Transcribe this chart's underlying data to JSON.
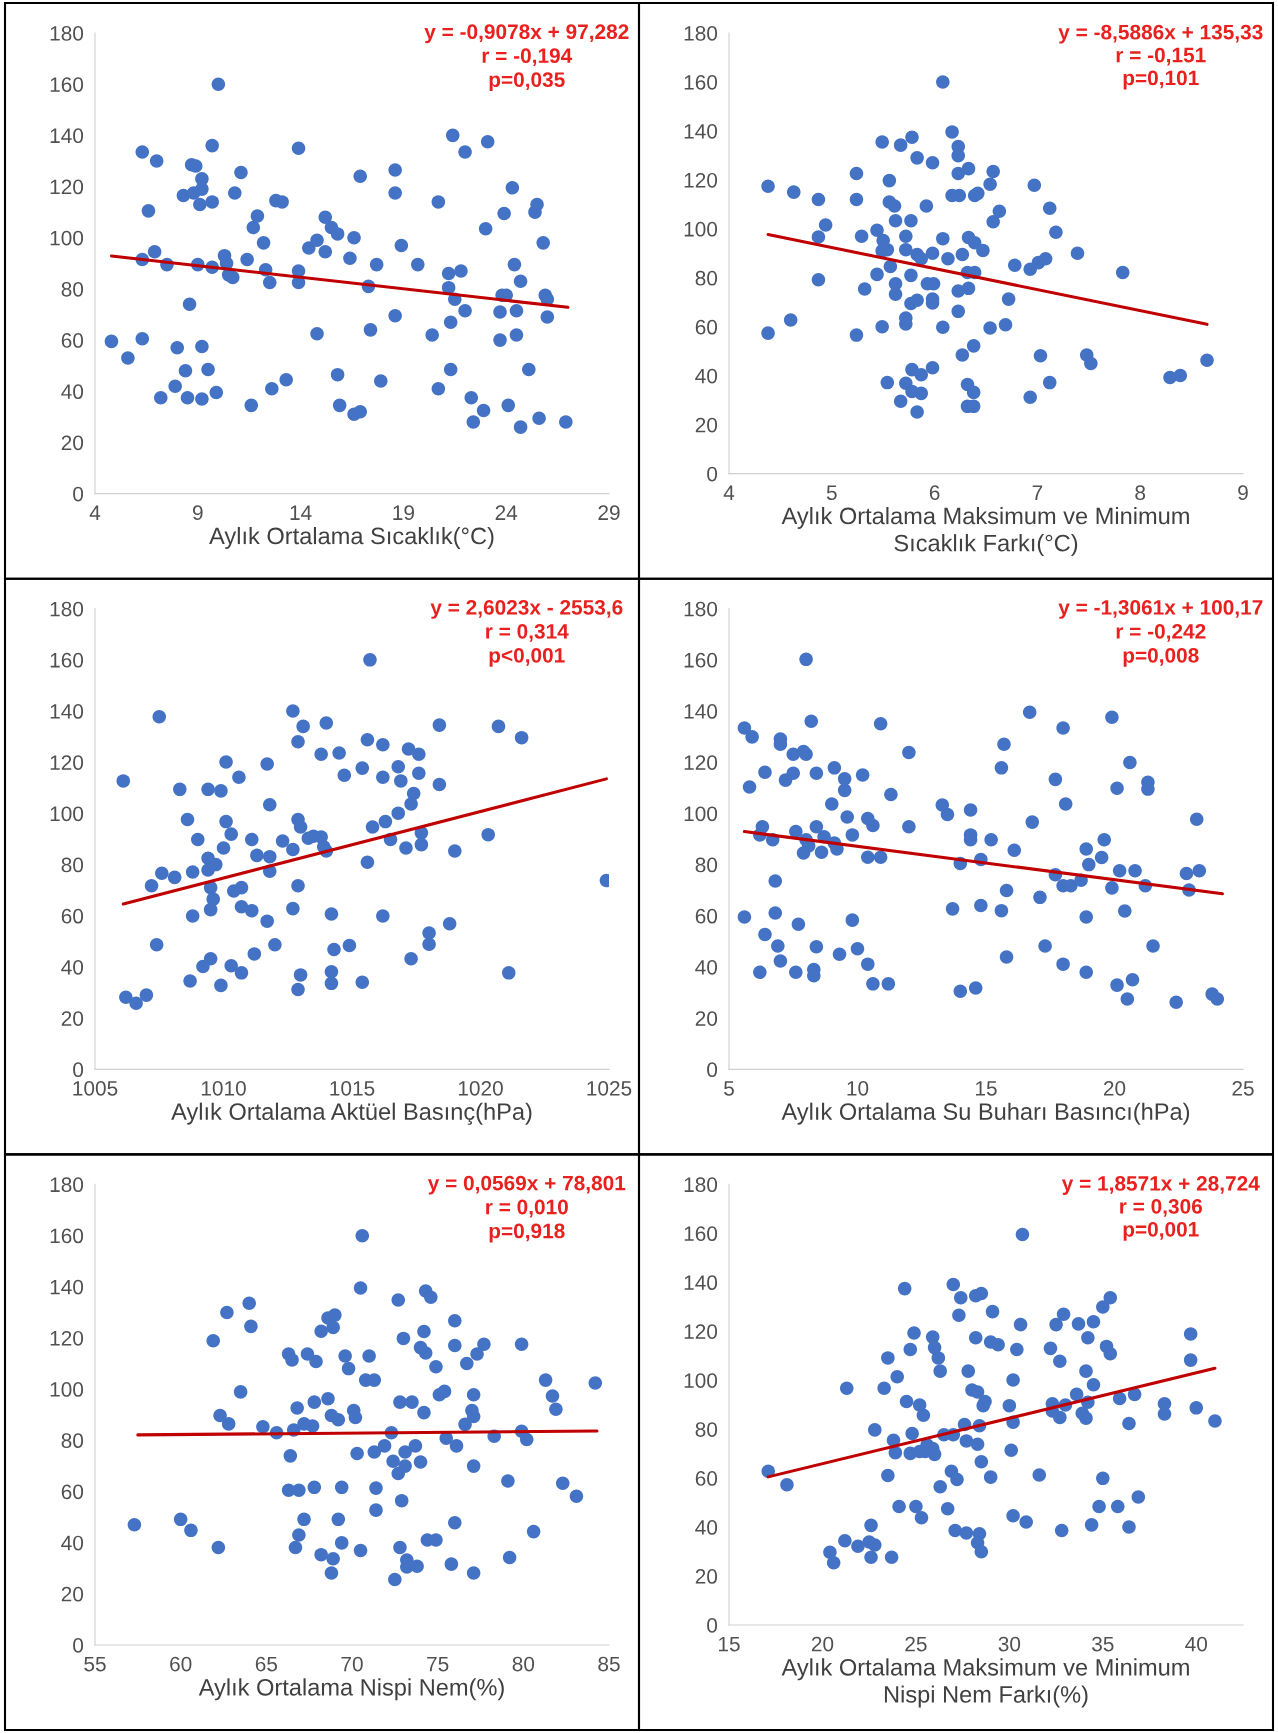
{
  "chart_data": [
    {
      "type": "scatter",
      "xlabel": "Aylık Ortalama Sıcaklık(°C)",
      "xlim": [
        4,
        29
      ],
      "xticks": [
        4,
        9,
        14,
        19,
        24,
        29
      ],
      "ylim": [
        0,
        180
      ],
      "yticks": [
        0,
        20,
        40,
        60,
        80,
        100,
        120,
        140,
        160,
        180
      ],
      "grid": false,
      "marker": "circle",
      "annotations": [
        "y = -0,9078x + 97,282",
        "r = -0,194",
        "p=0,035"
      ],
      "series": [
        {
          "color": "#4472c4",
          "x": [
            4.8,
            5.6,
            6.3,
            6.3,
            6.3,
            6.6,
            6.9,
            7.0,
            7.2,
            7.5,
            7.9,
            8.0,
            8.3,
            8.4,
            8.5,
            8.6,
            8.7,
            8.9,
            8.8,
            9.0,
            9.1,
            9.2,
            9.2,
            9.2,
            9.2,
            9.5,
            9.7,
            9.7,
            9.7,
            9.9,
            10.0,
            10.3,
            10.4,
            10.5,
            10.7,
            10.8,
            11.1,
            11.4,
            11.6,
            11.7,
            11.9,
            12.2,
            12.3,
            12.5,
            12.6,
            12.8,
            13.1,
            13.3,
            13.9,
            13.9,
            13.9,
            14.4,
            14.8,
            14.8,
            15.2,
            15.2,
            15.5,
            15.8,
            15.8,
            15.9,
            16.6,
            16.4,
            16.6,
            16.9,
            16.9,
            17.3,
            17.4,
            17.7,
            17.9,
            18.6,
            18.6,
            18.6,
            18.9,
            19.7,
            20.4,
            20.7,
            20.7,
            21.2,
            21.2,
            21.4,
            21.3,
            21.3,
            21.5,
            21.8,
            22.0,
            22.0,
            22.3,
            22.4,
            22.9,
            23.0,
            23.1,
            23.7,
            23.7,
            23.8,
            24.0,
            23.9,
            24.1,
            24.3,
            24.4,
            24.5,
            24.5,
            24.7,
            24.7,
            25.1,
            25.4,
            25.5,
            25.6,
            25.8,
            25.9,
            26.0,
            26.0,
            26.9
          ],
          "values": [
            59.5,
            53,
            133.5,
            60.5,
            91.5,
            110.5,
            94.5,
            130,
            37.5,
            89.5,
            42,
            57,
            116.5,
            48,
            37.5,
            74,
            128.5,
            128,
            117.5,
            89.5,
            113,
            123,
            119,
            57.5,
            37,
            48.5,
            136,
            114,
            88.5,
            39.5,
            160,
            93,
            90,
            85.5,
            84.5,
            117.5,
            125.5,
            91.5,
            34.5,
            104,
            108.5,
            98,
            87.5,
            82.5,
            41,
            114.5,
            114,
            44.5,
            135,
            87,
            82.5,
            96,
            99,
            62.5,
            94.5,
            108,
            104,
            101.5,
            46.5,
            34.5,
            100,
            92,
            31,
            32,
            124,
            81,
            64,
            89.5,
            44,
            126.5,
            117.5,
            69.5,
            97,
            89.5,
            62,
            114,
            41,
            86,
            80.5,
            140,
            67,
            48.5,
            76,
            87,
            71.5,
            133.5,
            37.5,
            28,
            32.5,
            103.5,
            137.5,
            60,
            71,
            77.5,
            77.5,
            109.5,
            34.5,
            119.5,
            89.5,
            71.5,
            62,
            83,
            26,
            48.5,
            110,
            113,
            29.5,
            98,
            77.5,
            76,
            69,
            28
          ]
        },
        {
          "type": "line",
          "color": "#c00000",
          "marker": "none",
          "x": [
            4.8,
            27.0
          ],
          "values": [
            92.9,
            72.8
          ]
        }
      ]
    },
    {
      "type": "scatter",
      "xlabel": "Aylık Ortalama Maksimum ve Minimum\nSıcaklık Farkı(°C)",
      "xlim": [
        4,
        9
      ],
      "xticks": [
        4,
        5,
        6,
        7,
        8,
        9
      ],
      "ylim": [
        0,
        180
      ],
      "yticks": [
        0,
        20,
        40,
        60,
        80,
        100,
        120,
        140,
        160,
        180
      ],
      "grid": false,
      "marker": "circle",
      "annotations": [
        "y = -8,5886x + 135,33",
        "r = -0,151",
        "p=0,101"
      ],
      "series": [
        {
          "color": "#4472c4",
          "x": [
            4.38,
            4.38,
            4.63,
            4.6,
            4.87,
            4.87,
            4.94,
            4.87,
            5.24,
            5.24,
            5.29,
            5.32,
            5.24,
            5.44,
            5.44,
            5.49,
            5.5,
            5.49,
            5.54,
            5.49,
            5.54,
            5.56,
            5.56,
            5.61,
            5.57,
            5.62,
            5.62,
            5.62,
            5.67,
            5.72,
            5.72,
            5.72,
            5.72,
            5.72,
            5.67,
            5.78,
            5.77,
            5.77,
            5.77,
            5.83,
            5.83,
            5.83,
            5.87,
            5.78,
            5.87,
            5.87,
            5.78,
            5.83,
            5.92,
            5.93,
            5.99,
            5.98,
            5.98,
            5.98,
            5.98,
            5.98,
            6.08,
            6.08,
            6.13,
            6.08,
            6.17,
            6.23,
            6.23,
            6.23,
            6.17,
            6.24,
            6.23,
            6.23,
            6.27,
            6.27,
            6.33,
            6.33,
            6.32,
            6.39,
            6.33,
            6.32,
            6.38,
            6.32,
            6.38,
            6.38,
            6.39,
            6.42,
            6.39,
            6.47,
            6.54,
            6.57,
            6.57,
            6.63,
            6.54,
            6.69,
            6.72,
            6.78,
            6.93,
            6.97,
            7.01,
            7.08,
            6.93,
            7.03,
            7.12,
            7.18,
            7.12,
            7.39,
            7.48,
            7.52,
            7.83,
            8.29,
            8.39,
            8.65
          ],
          "values": [
            117.4,
            57.4,
            115,
            62.8,
            112,
            96.7,
            101.6,
            79.2,
            122.6,
            112,
            97,
            75.4,
            56.6,
            99.4,
            81.4,
            135.5,
            95.2,
            91,
            91.5,
            60,
            37.2,
            119.7,
            111,
            109.3,
            84.6,
            103.3,
            77.6,
            73.3,
            134.2,
            97,
            91.5,
            63.6,
            61.1,
            36.9,
            29.6,
            137.4,
            103.3,
            81,
            69.5,
            129,
            89.5,
            70.8,
            87.8,
            42.5,
            40.4,
            32.8,
            33.6,
            25.2,
            109.3,
            77.6,
            77.6,
            71.3,
            69.7,
            127,
            90,
            43.3,
            160,
            96,
            87.8,
            59.8,
            139.6,
            133.6,
            129.9,
            122.6,
            113.6,
            113.6,
            74.6,
            66.3,
            89.5,
            48.5,
            124.6,
            96.5,
            82.2,
            82.2,
            75.7,
            36.4,
            33.2,
            27.5,
            27.5,
            52.2,
            113.6,
            114.5,
            94.3,
            91.2,
            118.2,
            123.4,
            102.9,
            107.2,
            59.5,
            60.8,
            71.3,
            85.1,
            83.5,
            117.8,
            86.2,
            87.8,
            31.2,
            48.2,
            108.4,
            98.6,
            37.2,
            90,
            48.5,
            45,
            82.2,
            39.3,
            40.1,
            46.3
          ]
        },
        {
          "type": "line",
          "color": "#c00000",
          "marker": "none",
          "x": [
            4.38,
            8.65
          ],
          "values": [
            97.7,
            61.0
          ]
        }
      ]
    },
    {
      "type": "scatter",
      "xlabel": "Aylık Ortalama Aktüel Basınç(hPa)",
      "xlim": [
        1005,
        1025
      ],
      "xticks": [
        1005,
        1010,
        1015,
        1020,
        1025
      ],
      "ylim": [
        0,
        180
      ],
      "yticks": [
        0,
        20,
        40,
        60,
        80,
        100,
        120,
        140,
        160,
        180
      ],
      "grid": false,
      "marker": "circle",
      "annotations": [
        "y = 2,6023x - 2553,6",
        "r = 0,314",
        "p<0,001"
      ],
      "series": [
        {
          "color": "#4472c4",
          "x": [
            1006.1,
            1006.2,
            1006.6,
            1007.0,
            1007.2,
            1007.5,
            1007.6,
            1008.1,
            1007.4,
            1008.3,
            1008.6,
            1008.8,
            1008.8,
            1008.7,
            1009.0,
            1009.2,
            1009.4,
            1009.4,
            1009.4,
            1009.5,
            1009.5,
            1009.5,
            1009.7,
            1009.6,
            1009.9,
            1009.9,
            1010.0,
            1010.1,
            1010.1,
            1010.3,
            1010.4,
            1010.6,
            1010.7,
            1010.3,
            1010.7,
            1010.7,
            1011.1,
            1011.1,
            1011.2,
            1011.3,
            1011.7,
            1011.8,
            1011.8,
            1011.8,
            1011.7,
            1012.0,
            1012.3,
            1012.7,
            1012.7,
            1012.7,
            1012.9,
            1012.9,
            1013.0,
            1012.9,
            1012.9,
            1013.1,
            1013.0,
            1013.3,
            1013.5,
            1013.8,
            1013.9,
            1014.0,
            1013.8,
            1014.0,
            1014.2,
            1014.2,
            1014.2,
            1014.3,
            1014.5,
            1014.7,
            1014.9,
            1015.4,
            1015.4,
            1015.6,
            1015.6,
            1015.7,
            1015.8,
            1016.2,
            1016.2,
            1016.2,
            1016.3,
            1016.5,
            1016.8,
            1016.8,
            1016.9,
            1017.1,
            1017.2,
            1017.6,
            1017.6,
            1017.4,
            1017.3,
            1017.3,
            1017.7,
            1017.7,
            1018.0,
            1018.0,
            1018.4,
            1018.4,
            1018.8,
            1019.0,
            1020.3,
            1020.7,
            1021.1,
            1021.6,
            1024.9
          ],
          "values": [
            112.7,
            28.2,
            25.8,
            29,
            71.7,
            137.8,
            76.6,
            75,
            48.7,
            109.4,
            97.6,
            77.1,
            59.9,
            34.5,
            89.8,
            40.2,
            109.4,
            82.5,
            77.9,
            71,
            62.4,
            43.2,
            80,
            66.5,
            32.8,
            108.8,
            86.5,
            120.1,
            96.8,
            91.9,
            69.7,
            114.1,
            71,
            40.5,
            37.7,
            63.5,
            89.8,
            62,
            45.1,
            83.6,
            119.3,
            103.4,
            83.1,
            77.4,
            57.9,
            48.7,
            89.2,
            140,
            85.9,
            62.8,
            128,
            97.6,
            94.7,
            71.7,
            31.2,
            134,
            36.9,
            90.3,
            91.1,
            90.8,
            87,
            135.3,
            123.1,
            85.3,
            60.7,
            38.1,
            33.6,
            46.8,
            123.6,
            114.9,
            48.4,
            34,
            117.7,
            80.9,
            128.8,
            160,
            94.7,
            126.8,
            114.1,
            59.9,
            96.8,
            89.8,
            100.1,
            118.2,
            112.7,
            86.5,
            125.2,
            123.1,
            115.7,
            107.8,
            103.7,
            43.2,
            92.4,
            87.8,
            53.3,
            48.9,
            134.5,
            111.3,
            56.9,
            85.3,
            91.7,
            134,
            37.7,
            129.6,
            73.8
          ]
        },
        {
          "type": "line",
          "color": "#c00000",
          "marker": "none",
          "x": [
            1006.1,
            1024.9
          ],
          "values": [
            64.6,
            113.5
          ]
        }
      ]
    },
    {
      "type": "scatter",
      "xlabel": "Aylık Ortalama Su Buharı Basıncı(hPa)",
      "xlim": [
        5,
        25
      ],
      "xticks": [
        5,
        10,
        15,
        20,
        25
      ],
      "ylim": [
        0,
        180
      ],
      "yticks": [
        0,
        20,
        40,
        60,
        80,
        100,
        120,
        140,
        160,
        180
      ],
      "grid": false,
      "marker": "circle",
      "annotations": [
        "y = -1,3061x + 100,17",
        "r = -0,242",
        "p=0,008"
      ],
      "series": [
        {
          "color": "#4472c4",
          "x": [
            5.6,
            5.9,
            5.8,
            5.6,
            6.3,
            6.2,
            6.4,
            6.4,
            6.2,
            6.7,
            7.0,
            7.0,
            6.8,
            6.8,
            6.9,
            7.0,
            7.2,
            7.5,
            7.5,
            7.6,
            7.6,
            7.7,
            7.9,
            8.0,
            7.9,
            8.0,
            8.2,
            8.0,
            8.1,
            8.4,
            8.4,
            8.4,
            8.3,
            8.3,
            8.6,
            8.7,
            9.0,
            9.1,
            9.1,
            9.2,
            9.3,
            9.5,
            9.5,
            9.6,
            9.8,
            9.8,
            10.0,
            10.2,
            10.4,
            10.6,
            10.4,
            10.9,
            10.4,
            10.6,
            11.2,
            10.9,
            11.3,
            12.0,
            12.0,
            13.3,
            13.5,
            13.7,
            14.0,
            14.0,
            14.4,
            14.4,
            14.4,
            14.6,
            14.8,
            14.8,
            15.2,
            15.7,
            15.6,
            15.6,
            16.1,
            15.8,
            15.8,
            16.7,
            16.8,
            17.1,
            17.3,
            17.7,
            17.7,
            18.0,
            18.1,
            18.0,
            18.3,
            18.0,
            18.7,
            18.9,
            19.0,
            18.9,
            18.9,
            19.5,
            19.6,
            19.9,
            19.9,
            20.1,
            20.2,
            20.1,
            20.4,
            20.6,
            20.5,
            20.7,
            20.8,
            21.2,
            21.3,
            21.3,
            21.5,
            22.4,
            22.8,
            22.9,
            23.2,
            23.3,
            23.8,
            24.0
          ],
          "values": [
            133.4,
            129.9,
            110.3,
            59.5,
            94.8,
            91.6,
            116.1,
            52.7,
            37.9,
            89.7,
            129.1,
            127,
            73.6,
            61.1,
            48.2,
            42.3,
            113,
            115.7,
            123.1,
            92.9,
            37.9,
            56.7,
            124.2,
            123.1,
            84.5,
            160.2,
            136,
            89.7,
            87.3,
            115.7,
            94.8,
            47.9,
            39,
            36.6,
            84.8,
            90.9,
            103.7,
            117.8,
            88.4,
            86.1,
            45,
            113.5,
            109,
            98.6,
            91.6,
            58.3,
            47.1,
            115,
            98,
            95.3,
            82.9,
            82.9,
            41.1,
            33.4,
            33.4,
            135,
            107.4,
            123.8,
            94.8,
            103.3,
            99.6,
            62.7,
            80.4,
            30.5,
            101.3,
            91.6,
            89.7,
            31.8,
            82,
            64,
            89.7,
            127,
            117.8,
            62,
            85.6,
            69.9,
            43.9,
            139.5,
            96.6,
            67.2,
            48.2,
            76,
            113.3,
            133.4,
            103.7,
            71.7,
            71.7,
            41.1,
            73.9,
            86.1,
            80,
            59.5,
            37.9,
            82.8,
            89.7,
            137.6,
            70.9,
            109.8,
            77.6,
            32.9,
            61.9,
            119.9,
            27.5,
            35,
            77.6,
            71.7,
            112.2,
            109.5,
            48.2,
            26.2,
            76.5,
            70.1,
            97.7,
            77.6,
            29.4,
            27.5
          ]
        },
        {
          "type": "line",
          "color": "#c00000",
          "marker": "none",
          "x": [
            5.6,
            24.2
          ],
          "values": [
            92.9,
            68.6
          ]
        }
      ]
    },
    {
      "type": "scatter",
      "xlabel": "Aylık Ortalama Nispi Nem(%)",
      "xlim": [
        55,
        85
      ],
      "xticks": [
        55,
        60,
        65,
        70,
        75,
        80,
        85
      ],
      "ylim": [
        0,
        180
      ],
      "yticks": [
        0,
        20,
        40,
        60,
        80,
        100,
        120,
        140,
        160,
        180
      ],
      "grid": false,
      "marker": "circle",
      "annotations": [
        "y = 0,0569x + 78,801",
        "r = 0,010",
        "p=0,918"
      ],
      "series": [
        {
          "color": "#4472c4",
          "x": [
            57.3,
            60.0,
            60.6,
            61.9,
            62.2,
            62.3,
            62.8,
            62.7,
            63.5,
            64.0,
            64.1,
            64.8,
            65.6,
            66.3,
            66.5,
            66.4,
            66.3,
            66.9,
            66.8,
            66.7,
            66.9,
            66.6,
            67.2,
            67.4,
            67.9,
            67.7,
            67.8,
            67.8,
            67.2,
            68.2,
            68.2,
            68.6,
            68.9,
            69.0,
            68.6,
            68.8,
            69.2,
            68.9,
            68.8,
            69.2,
            69.4,
            69.4,
            69.6,
            69.8,
            70.1,
            70.2,
            70.3,
            70.5,
            70.5,
            70.6,
            71.0,
            70.8,
            71.3,
            71.3,
            71.4,
            71.4,
            71.9,
            72.3,
            72.4,
            72.7,
            72.5,
            72.7,
            72.8,
            72.9,
            72.8,
            73.0,
            73.1,
            73.1,
            73.2,
            73.2,
            73.5,
            73.7,
            73.8,
            74.0,
            74.0,
            74.2,
            74.3,
            74.3,
            74.6,
            74.2,
            74.4,
            74.9,
            74.9,
            75.1,
            75.4,
            75.5,
            76.0,
            76.0,
            76.1,
            76.0,
            75.8,
            76.6,
            76.7,
            77.1,
            77.0,
            77.1,
            77.1,
            77.1,
            77.3,
            77.7,
            78.3,
            79.1,
            79.2,
            79.9,
            79.9,
            80.2,
            80.6,
            81.3,
            81.7,
            81.9,
            82.3,
            83.1,
            84.2
          ],
          "values": [
            47,
            49.1,
            44.8,
            118.9,
            38.1,
            89.7,
            86.4,
            129.9,
            98.9,
            133.5,
            124.5,
            85.3,
            82.9,
            113.7,
            111.4,
            73.9,
            60.5,
            60.5,
            92.6,
            38.1,
            43,
            84,
            86.4,
            113.7,
            110.8,
            85.6,
            94.9,
            61.6,
            49.1,
            35.3,
            122.6,
            127.8,
            124.1,
            128.9,
            96.2,
            89.7,
            88,
            33.7,
            28.1,
            49.1,
            61.6,
            39.9,
            112.9,
            108,
            91.6,
            88.9,
            74.8,
            36.9,
            139.5,
            159.9,
            112.9,
            103.5,
            103.5,
            75.4,
            61.3,
            52.7,
            77.8,
            82.9,
            71.8,
            67,
            25.6,
            134.8,
            94.9,
            56.4,
            38.1,
            119.8,
            75.4,
            69.9,
            33.2,
            30.5,
            94.9,
            77.8,
            30.8,
            71.5,
            116.2,
            122.5,
            114.1,
            138.3,
            135.9,
            90.8,
            41,
            41,
            108.7,
            97.8,
            99.1,
            80.8,
            126.7,
            117,
            77.8,
            47.8,
            31.6,
            86.2,
            110,
            97.8,
            91.6,
            89.3,
            69.9,
            28.1,
            113.7,
            117.5,
            81.6,
            64.1,
            34.2,
            117.5,
            83.5,
            80.3,
            44.3,
            103.5,
            97.3,
            92.1,
            63.2,
            58.1,
            102.4
          ]
        },
        {
          "type": "line",
          "color": "#c00000",
          "marker": "none",
          "x": [
            57.5,
            84.3
          ],
          "values": [
            82.1,
            83.6
          ]
        }
      ]
    },
    {
      "type": "scatter",
      "xlabel": "Aylık Ortalama Maksimum ve Minimum\nNispi Nem Farkı(%)",
      "xlim": [
        15,
        42.5
      ],
      "xticks": [
        15,
        20,
        25,
        30,
        35,
        40
      ],
      "ylim": [
        0,
        180
      ],
      "yticks": [
        0,
        20,
        40,
        60,
        80,
        100,
        120,
        140,
        160,
        180
      ],
      "grid": false,
      "marker": "circle",
      "annotations": [
        "y = 1,8571x + 28,724",
        "r = 0,306",
        "p=0,001"
      ],
      "series": [
        {
          "color": "#4472c4",
          "x": [
            17.1,
            18.1,
            20.4,
            20.6,
            21.2,
            21.3,
            21.9,
            22.5,
            22.8,
            22.6,
            22.6,
            22.8,
            23.3,
            23.5,
            23.5,
            23.7,
            23.8,
            23.9,
            24.0,
            24.1,
            24.4,
            24.5,
            24.7,
            24.9,
            24.7,
            24.8,
            25.0,
            25.3,
            25.2,
            25.4,
            25.2,
            25.5,
            25.6,
            25.9,
            26.0,
            26.2,
            26.3,
            25.9,
            26.0,
            26.3,
            26.5,
            26.7,
            26.9,
            27.0,
            27.0,
            27.2,
            27.1,
            27.3,
            27.4,
            27.6,
            27.7,
            27.7,
            27.8,
            28.2,
            28.0,
            28.2,
            28.5,
            28.3,
            28.4,
            28.3,
            28.5,
            28.5,
            28.4,
            28.3,
            28.6,
            28.7,
            29.1,
            29.0,
            29.0,
            29.4,
            30.0,
            30.1,
            30.2,
            30.2,
            30.2,
            30.4,
            30.6,
            30.7,
            30.9,
            31.6,
            32.2,
            32.5,
            32.3,
            32.3,
            32.7,
            32.7,
            32.9,
            33.0,
            32.8,
            33.6,
            33.7,
            33.9,
            34.1,
            34.1,
            34.2,
            34.2,
            34.5,
            34.4,
            34.5,
            34.8,
            35.0,
            35.0,
            35.4,
            35.2,
            35.4,
            35.8,
            35.9,
            36.4,
            36.4,
            36.7,
            36.9,
            38.3,
            38.3,
            39.7,
            39.7,
            40.0,
            41.0
          ],
          "values": [
            62.8,
            57.3,
            29.7,
            25.4,
            34.4,
            96.7,
            32.2,
            33.9,
            32.7,
            40.7,
            27.7,
            79.7,
            96.7,
            61.1,
            109.1,
            27.7,
            75.5,
            70.4,
            101.4,
            48.4,
            137.4,
            91.3,
            112.5,
            119.3,
            70.1,
            78.2,
            48.4,
            43.8,
            89.9,
            85.7,
            70.9,
            70.9,
            73.5,
            117.6,
            113.3,
            109.1,
            103.7,
            72.1,
            69.7,
            56.5,
            77.7,
            47.5,
            62.8,
            139.1,
            77.7,
            59.4,
            38.6,
            126.5,
            133.7,
            81.9,
            37.6,
            75.2,
            103.7,
            117.3,
            96,
            134.5,
            135.4,
            73.8,
            37.3,
            33.6,
            29.9,
            66.7,
            81.4,
            95.2,
            89.6,
            91.3,
            128,
            60.4,
            115.6,
            114.5,
            89.6,
            71.4,
            100.1,
            82.8,
            44.6,
            112.5,
            122.7,
            159.5,
            42.1,
            61.3,
            113,
            122.7,
            87.4,
            90.4,
            84.8,
            107.7,
            126.9,
            89.9,
            38.6,
            94.2,
            123,
            86.5,
            84.5,
            103.7,
            117.3,
            91,
            123.9,
            40.9,
            98.1,
            48.4,
            59.9,
            129.9,
            133.7,
            113.8,
            110.8,
            48.4,
            92.5,
            40,
            82.3,
            94.2,
            52.3,
            90.4,
            86.2,
            118.9,
            108.2,
            88.7,
            83.3
          ]
        },
        {
          "type": "line",
          "color": "#c00000",
          "marker": "none",
          "x": [
            17.1,
            41.0
          ],
          "values": [
            60.5,
            104.9
          ]
        }
      ]
    }
  ]
}
